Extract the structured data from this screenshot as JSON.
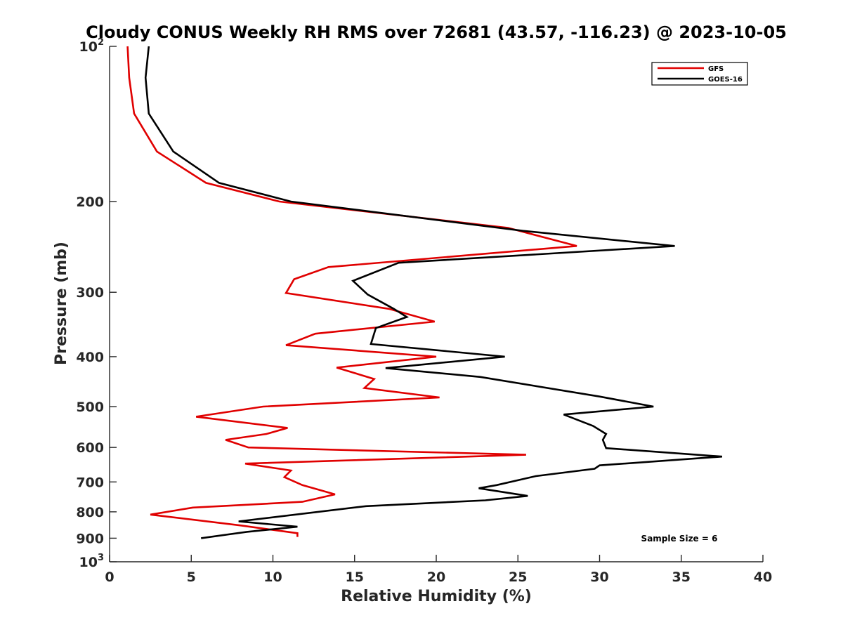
{
  "chart_data": {
    "type": "line",
    "title": "Cloudy CONUS Weekly RH RMS over 72681 (43.57, -116.23) @ 2023-10-05",
    "xlabel": "Relative Humidity (%)",
    "ylabel": "Pressure (mb)",
    "xlim": [
      0,
      40
    ],
    "ylim": [
      100,
      1000
    ],
    "y_scale": "log",
    "y_reversed": true,
    "x_ticks": [
      "0",
      "5",
      "10",
      "15",
      "20",
      "25",
      "30",
      "35",
      "40"
    ],
    "y_ticks": [
      {
        "value": 100,
        "base": "10",
        "exp": "2"
      },
      {
        "value": 200,
        "label": "200"
      },
      {
        "value": 300,
        "label": "300"
      },
      {
        "value": 400,
        "label": "400"
      },
      {
        "value": 500,
        "label": "500"
      },
      {
        "value": 600,
        "label": "600"
      },
      {
        "value": 700,
        "label": "700"
      },
      {
        "value": 800,
        "label": "800"
      },
      {
        "value": 900,
        "label": "900"
      },
      {
        "value": 1000,
        "base": "10",
        "exp": "3"
      }
    ],
    "legend": {
      "position": "top-right"
    },
    "annotation": "Sample Size = 6",
    "series": [
      {
        "name": "GFS",
        "color": "#e00000",
        "points": [
          [
            1.1,
            100
          ],
          [
            1.2,
            115
          ],
          [
            1.5,
            135
          ],
          [
            2.9,
            160
          ],
          [
            5.9,
            184
          ],
          [
            10.4,
            200
          ],
          [
            24.4,
            225
          ],
          [
            28.6,
            244
          ],
          [
            13.4,
            268
          ],
          [
            11.3,
            283
          ],
          [
            10.8,
            301
          ],
          [
            17.1,
            323
          ],
          [
            19.9,
            342
          ],
          [
            12.6,
            361
          ],
          [
            10.8,
            380
          ],
          [
            20.0,
            400
          ],
          [
            13.9,
            420
          ],
          [
            16.2,
            442
          ],
          [
            15.6,
            460
          ],
          [
            20.2,
            480
          ],
          [
            9.4,
            500
          ],
          [
            5.3,
            523
          ],
          [
            10.9,
            550
          ],
          [
            9.6,
            565
          ],
          [
            7.1,
            580
          ],
          [
            8.5,
            600
          ],
          [
            25.5,
            620
          ],
          [
            8.3,
            645
          ],
          [
            11.1,
            665
          ],
          [
            10.7,
            685
          ],
          [
            11.8,
            710
          ],
          [
            13.8,
            740
          ],
          [
            11.8,
            765
          ],
          [
            5.1,
            785
          ],
          [
            2.5,
            810
          ],
          [
            8.0,
            850
          ],
          [
            11.5,
            880
          ],
          [
            11.5,
            895
          ]
        ]
      },
      {
        "name": "GOES-16",
        "color": "#000000",
        "points": [
          [
            2.4,
            100
          ],
          [
            2.2,
            115
          ],
          [
            2.4,
            135
          ],
          [
            3.9,
            160
          ],
          [
            6.7,
            184
          ],
          [
            11.1,
            200
          ],
          [
            25.3,
            228
          ],
          [
            34.6,
            244
          ],
          [
            17.7,
            263
          ],
          [
            14.9,
            285
          ],
          [
            15.8,
            303
          ],
          [
            17.4,
            323
          ],
          [
            18.2,
            335
          ],
          [
            16.3,
            352
          ],
          [
            16.0,
            378
          ],
          [
            24.2,
            400
          ],
          [
            16.9,
            421
          ],
          [
            22.7,
            438
          ],
          [
            30.0,
            478
          ],
          [
            33.3,
            500
          ],
          [
            27.8,
            518
          ],
          [
            29.6,
            545
          ],
          [
            30.4,
            565
          ],
          [
            30.2,
            580
          ],
          [
            30.4,
            602
          ],
          [
            37.5,
            625
          ],
          [
            30.0,
            650
          ],
          [
            29.7,
            660
          ],
          [
            26.1,
            682
          ],
          [
            23.7,
            710
          ],
          [
            22.6,
            720
          ],
          [
            25.6,
            745
          ],
          [
            23.0,
            760
          ],
          [
            15.7,
            780
          ],
          [
            7.9,
            835
          ],
          [
            11.5,
            855
          ],
          [
            8.4,
            875
          ],
          [
            5.6,
            900
          ]
        ]
      }
    ]
  }
}
